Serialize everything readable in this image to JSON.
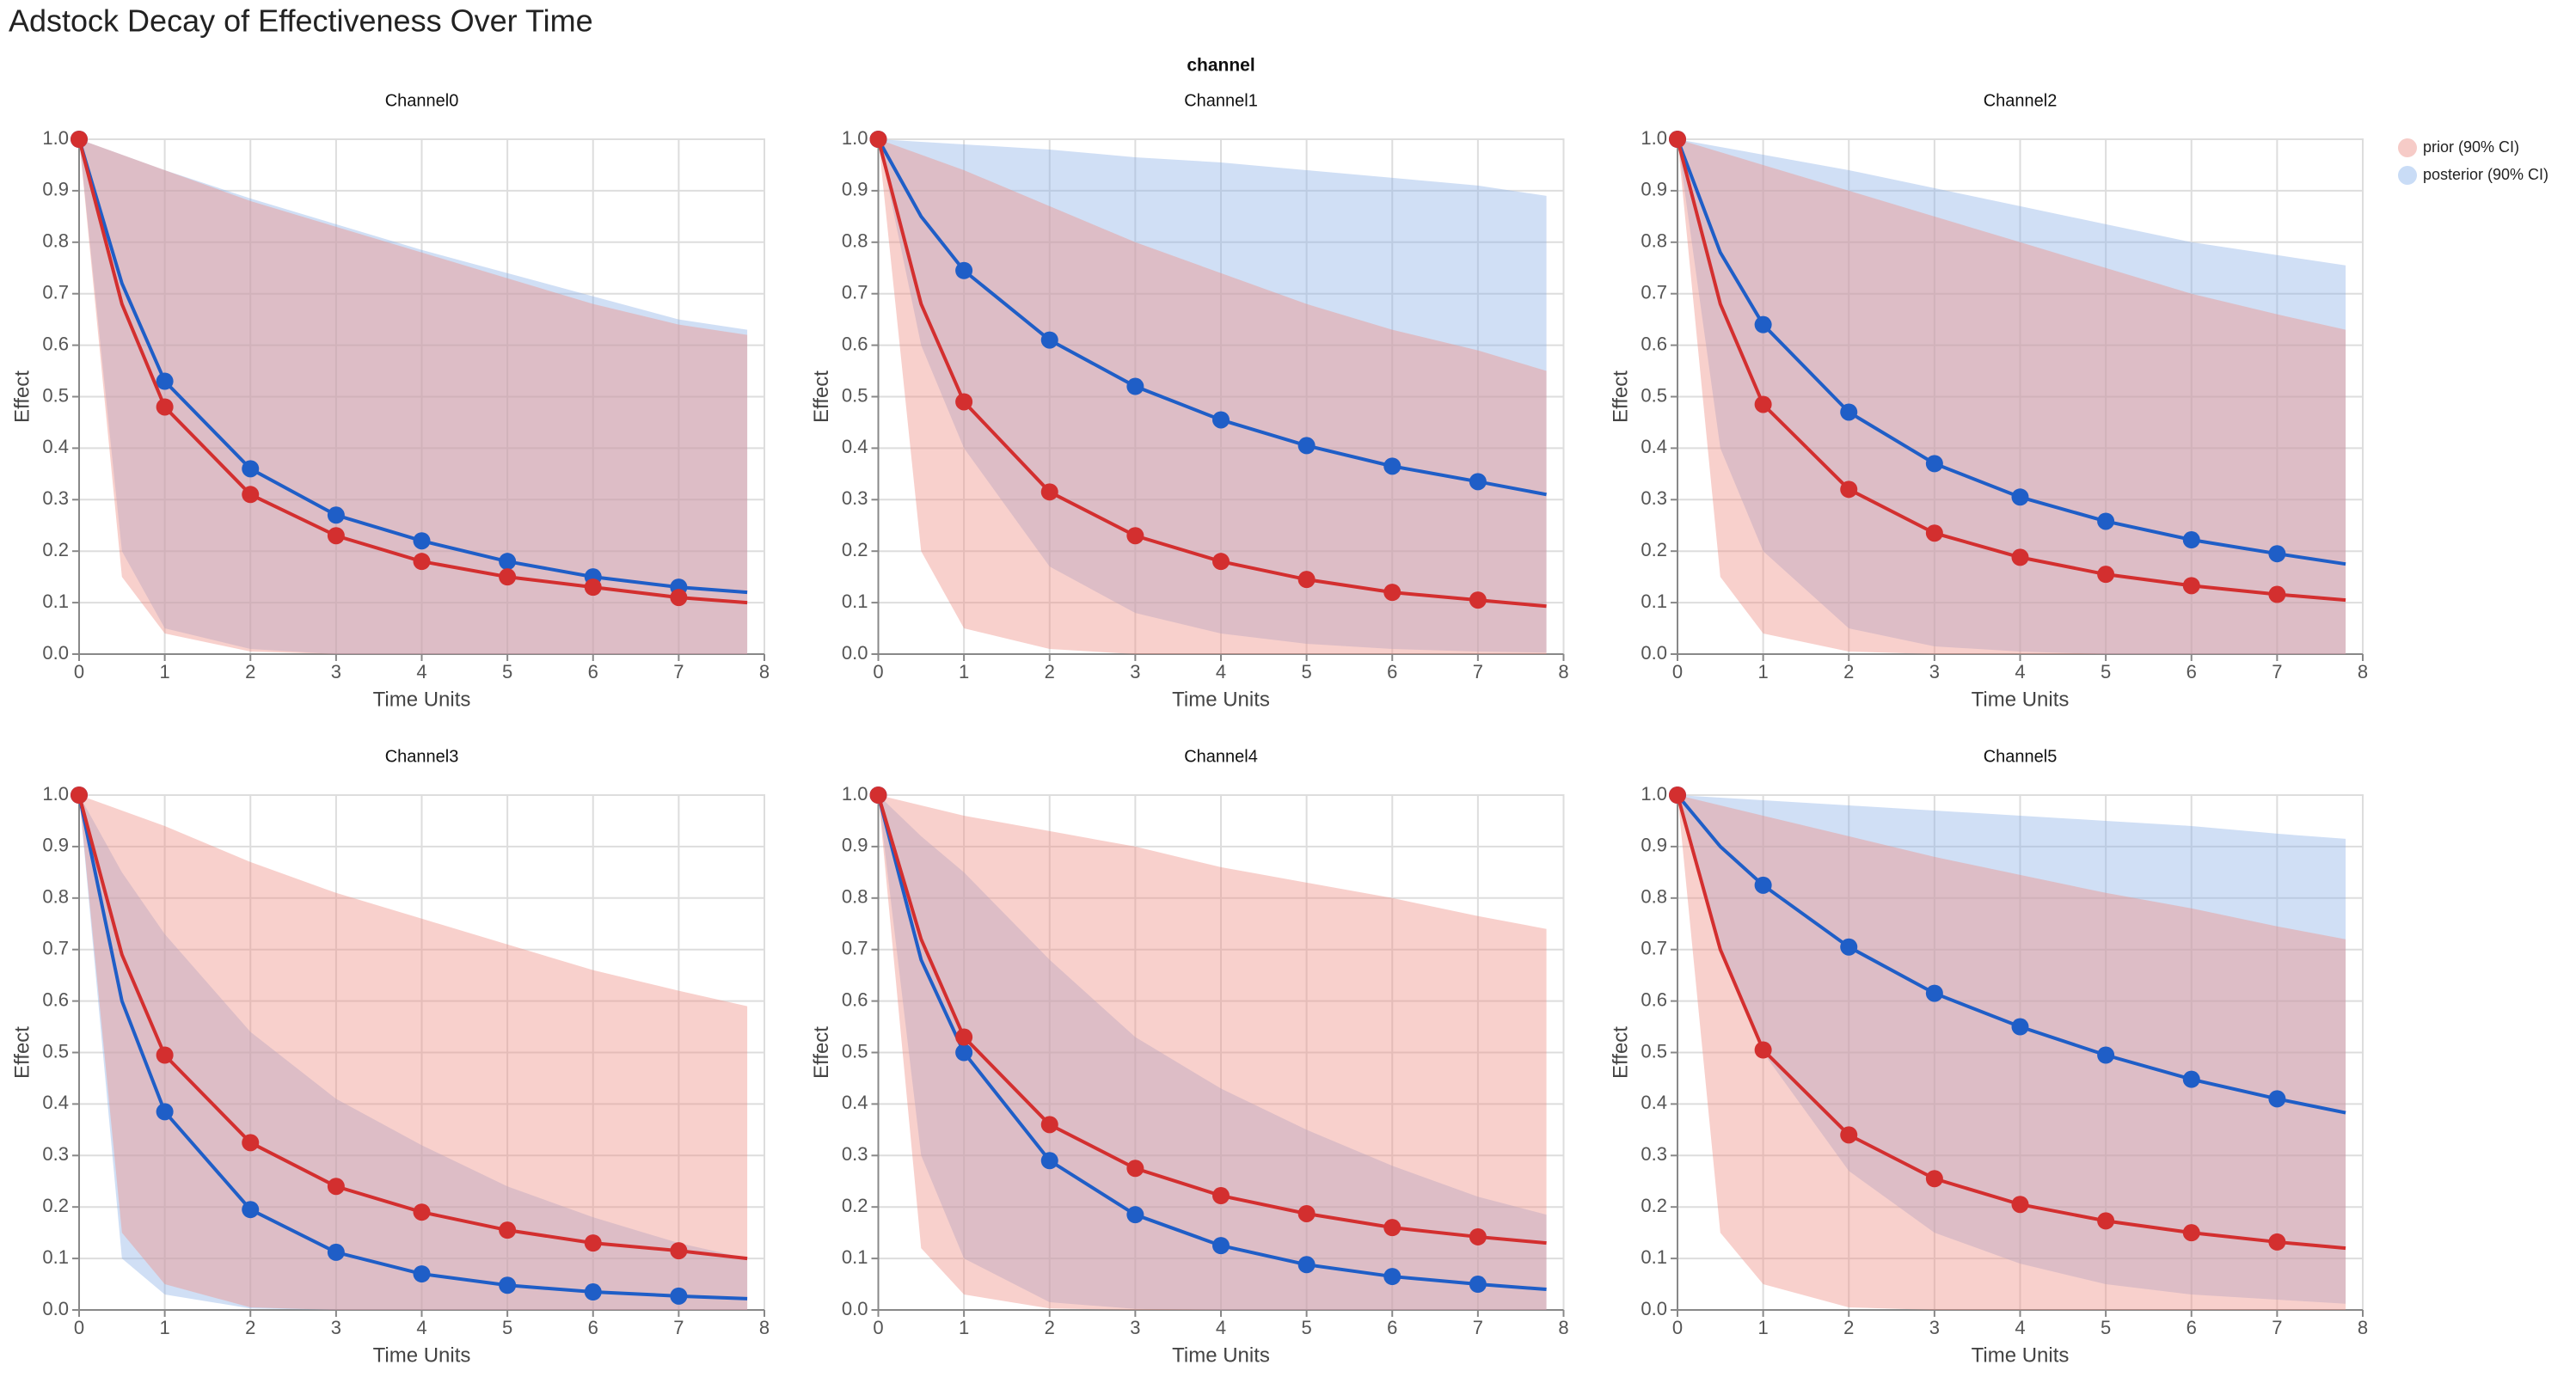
{
  "title": "Adstock Decay of Effectiveness Over Time",
  "facet_label": "channel",
  "legend": {
    "position": "right",
    "items": [
      {
        "name": "prior (90% CI)",
        "color": "#f6cbc7"
      },
      {
        "name": "posterior (90% CI)",
        "color": "#c9dcf6"
      }
    ]
  },
  "chart_data": [
    {
      "type": "line",
      "title": "Channel0",
      "x_label": "Time Units",
      "y_label": "Effect",
      "x": [
        0,
        0.5,
        1,
        2,
        3,
        4,
        5,
        6,
        7,
        7.8
      ],
      "xlim": [
        0,
        8
      ],
      "xticks": [
        0,
        1,
        2,
        3,
        4,
        5,
        6,
        7,
        8
      ],
      "ylim": [
        0,
        1
      ],
      "yticks": [
        {
          "value": 0,
          "label": "0.0"
        },
        0.1,
        0.2,
        0.3,
        0.4,
        0.5,
        0.6,
        0.7,
        0.8,
        0.9,
        {
          "value": 1,
          "label": "1.0"
        }
      ],
      "grid": true,
      "series": [
        {
          "color": "#1f5ec7",
          "band_color": "#8fb3e8",
          "values": [
            1,
            0.72,
            0.53,
            0.36,
            0.27,
            0.22,
            0.18,
            0.15,
            0.13,
            0.12
          ],
          "lower": [
            1,
            0.2,
            0.05,
            0.01,
            0,
            0,
            0,
            0,
            0,
            0
          ],
          "upper": [
            1,
            0.97,
            0.94,
            0.885,
            0.835,
            0.785,
            0.74,
            0.695,
            0.65,
            0.63
          ]
        },
        {
          "color": "#d32f2f",
          "band_color": "#ee8f86",
          "values": [
            1,
            0.68,
            0.48,
            0.31,
            0.23,
            0.18,
            0.15,
            0.13,
            0.11,
            0.1
          ],
          "lower": [
            1,
            0.15,
            0.04,
            0.005,
            0,
            0,
            0,
            0,
            0,
            0
          ],
          "upper": [
            1,
            0.97,
            0.94,
            0.88,
            0.83,
            0.78,
            0.73,
            0.68,
            0.64,
            0.62
          ]
        }
      ]
    },
    {
      "type": "line",
      "title": "Channel1",
      "x_label": "Time Units",
      "y_label": "Effect",
      "x": [
        0,
        0.5,
        1,
        2,
        3,
        4,
        5,
        6,
        7,
        7.8
      ],
      "xlim": [
        0,
        8
      ],
      "xticks": [
        0,
        1,
        2,
        3,
        4,
        5,
        6,
        7,
        8
      ],
      "ylim": [
        0,
        1
      ],
      "yticks": [
        {
          "value": 0,
          "label": "0.0"
        },
        0.1,
        0.2,
        0.3,
        0.4,
        0.5,
        0.6,
        0.7,
        0.8,
        0.9,
        {
          "value": 1,
          "label": "1.0"
        }
      ],
      "grid": true,
      "series": [
        {
          "color": "#1f5ec7",
          "band_color": "#8fb3e8",
          "values": [
            1,
            0.85,
            0.745,
            0.61,
            0.52,
            0.455,
            0.405,
            0.365,
            0.335,
            0.31
          ],
          "lower": [
            1,
            0.6,
            0.4,
            0.17,
            0.08,
            0.04,
            0.02,
            0.01,
            0.005,
            0.003
          ],
          "upper": [
            1,
            0.995,
            0.99,
            0.98,
            0.965,
            0.955,
            0.94,
            0.925,
            0.91,
            0.89
          ]
        },
        {
          "color": "#d32f2f",
          "band_color": "#ee8f86",
          "values": [
            1,
            0.68,
            0.49,
            0.315,
            0.23,
            0.18,
            0.145,
            0.12,
            0.105,
            0.093
          ],
          "lower": [
            1,
            0.2,
            0.05,
            0.01,
            0,
            0,
            0,
            0,
            0,
            0
          ],
          "upper": [
            1,
            0.97,
            0.94,
            0.87,
            0.8,
            0.74,
            0.68,
            0.63,
            0.59,
            0.55
          ]
        }
      ]
    },
    {
      "type": "line",
      "title": "Channel2",
      "x_label": "Time Units",
      "y_label": "Effect",
      "x": [
        0,
        0.5,
        1,
        2,
        3,
        4,
        5,
        6,
        7,
        7.8
      ],
      "xlim": [
        0,
        8
      ],
      "xticks": [
        0,
        1,
        2,
        3,
        4,
        5,
        6,
        7,
        8
      ],
      "ylim": [
        0,
        1
      ],
      "yticks": [
        {
          "value": 0,
          "label": "0.0"
        },
        0.1,
        0.2,
        0.3,
        0.4,
        0.5,
        0.6,
        0.7,
        0.8,
        0.9,
        {
          "value": 1,
          "label": "1.0"
        }
      ],
      "grid": true,
      "series": [
        {
          "color": "#1f5ec7",
          "band_color": "#8fb3e8",
          "values": [
            1,
            0.78,
            0.64,
            0.47,
            0.37,
            0.305,
            0.258,
            0.222,
            0.195,
            0.175
          ],
          "lower": [
            1,
            0.4,
            0.2,
            0.05,
            0.015,
            0.005,
            0,
            0,
            0,
            0
          ],
          "upper": [
            1,
            0.985,
            0.97,
            0.94,
            0.905,
            0.87,
            0.835,
            0.8,
            0.775,
            0.755
          ]
        },
        {
          "color": "#d32f2f",
          "band_color": "#ee8f86",
          "values": [
            1,
            0.68,
            0.485,
            0.32,
            0.235,
            0.188,
            0.155,
            0.133,
            0.116,
            0.105
          ],
          "lower": [
            1,
            0.15,
            0.04,
            0.005,
            0,
            0,
            0,
            0,
            0,
            0
          ],
          "upper": [
            1,
            0.975,
            0.95,
            0.9,
            0.85,
            0.8,
            0.75,
            0.7,
            0.66,
            0.63
          ]
        }
      ]
    },
    {
      "type": "line",
      "title": "Channel3",
      "x_label": "Time Units",
      "y_label": "Effect",
      "x": [
        0,
        0.5,
        1,
        2,
        3,
        4,
        5,
        6,
        7,
        7.8
      ],
      "xlim": [
        0,
        8
      ],
      "xticks": [
        0,
        1,
        2,
        3,
        4,
        5,
        6,
        7,
        8
      ],
      "ylim": [
        0,
        1
      ],
      "yticks": [
        {
          "value": 0,
          "label": "0.0"
        },
        0.1,
        0.2,
        0.3,
        0.4,
        0.5,
        0.6,
        0.7,
        0.8,
        0.9,
        {
          "value": 1,
          "label": "1.0"
        }
      ],
      "grid": true,
      "series": [
        {
          "color": "#1f5ec7",
          "band_color": "#8fb3e8",
          "values": [
            1,
            0.6,
            0.385,
            0.195,
            0.112,
            0.07,
            0.048,
            0.035,
            0.027,
            0.022
          ],
          "lower": [
            1,
            0.1,
            0.03,
            0.003,
            0,
            0,
            0,
            0,
            0,
            0
          ],
          "upper": [
            1,
            0.85,
            0.73,
            0.54,
            0.41,
            0.32,
            0.24,
            0.18,
            0.13,
            0.1
          ]
        },
        {
          "color": "#d32f2f",
          "band_color": "#ee8f86",
          "values": [
            1,
            0.69,
            0.495,
            0.325,
            0.24,
            0.19,
            0.155,
            0.13,
            0.115,
            0.1
          ],
          "lower": [
            1,
            0.15,
            0.05,
            0.005,
            0,
            0,
            0,
            0,
            0,
            0
          ],
          "upper": [
            1,
            0.97,
            0.94,
            0.87,
            0.81,
            0.76,
            0.71,
            0.66,
            0.62,
            0.59
          ]
        }
      ]
    },
    {
      "type": "line",
      "title": "Channel4",
      "x_label": "Time Units",
      "y_label": "Effect",
      "x": [
        0,
        0.5,
        1,
        2,
        3,
        4,
        5,
        6,
        7,
        7.8
      ],
      "xlim": [
        0,
        8
      ],
      "xticks": [
        0,
        1,
        2,
        3,
        4,
        5,
        6,
        7,
        8
      ],
      "ylim": [
        0,
        1
      ],
      "yticks": [
        {
          "value": 0,
          "label": "0.0"
        },
        0.1,
        0.2,
        0.3,
        0.4,
        0.5,
        0.6,
        0.7,
        0.8,
        0.9,
        {
          "value": 1,
          "label": "1.0"
        }
      ],
      "grid": true,
      "series": [
        {
          "color": "#1f5ec7",
          "band_color": "#8fb3e8",
          "values": [
            1,
            0.68,
            0.5,
            0.29,
            0.185,
            0.125,
            0.088,
            0.065,
            0.05,
            0.04
          ],
          "lower": [
            1,
            0.3,
            0.1,
            0.015,
            0.002,
            0,
            0,
            0,
            0,
            0
          ],
          "upper": [
            1,
            0.92,
            0.85,
            0.68,
            0.53,
            0.43,
            0.35,
            0.28,
            0.22,
            0.185
          ]
        },
        {
          "color": "#d32f2f",
          "band_color": "#ee8f86",
          "values": [
            1,
            0.72,
            0.53,
            0.36,
            0.275,
            0.222,
            0.187,
            0.16,
            0.142,
            0.13
          ],
          "lower": [
            1,
            0.12,
            0.03,
            0.003,
            0,
            0,
            0,
            0,
            0,
            0
          ],
          "upper": [
            1,
            0.98,
            0.96,
            0.93,
            0.9,
            0.86,
            0.83,
            0.8,
            0.765,
            0.74
          ]
        }
      ]
    },
    {
      "type": "line",
      "title": "Channel5",
      "x_label": "Time Units",
      "y_label": "Effect",
      "x": [
        0,
        0.5,
        1,
        2,
        3,
        4,
        5,
        6,
        7,
        7.8
      ],
      "xlim": [
        0,
        8
      ],
      "xticks": [
        0,
        1,
        2,
        3,
        4,
        5,
        6,
        7,
        8
      ],
      "ylim": [
        0,
        1
      ],
      "yticks": [
        {
          "value": 0,
          "label": "0.0"
        },
        0.1,
        0.2,
        0.3,
        0.4,
        0.5,
        0.6,
        0.7,
        0.8,
        0.9,
        {
          "value": 1,
          "label": "1.0"
        }
      ],
      "grid": true,
      "series": [
        {
          "color": "#1f5ec7",
          "band_color": "#8fb3e8",
          "values": [
            1,
            0.9,
            0.825,
            0.705,
            0.615,
            0.55,
            0.495,
            0.448,
            0.41,
            0.383
          ],
          "lower": [
            1,
            0.7,
            0.5,
            0.27,
            0.15,
            0.09,
            0.05,
            0.03,
            0.02,
            0.012
          ],
          "upper": [
            1,
            0.995,
            0.99,
            0.98,
            0.97,
            0.96,
            0.95,
            0.94,
            0.925,
            0.915
          ]
        },
        {
          "color": "#d32f2f",
          "band_color": "#ee8f86",
          "values": [
            1,
            0.7,
            0.505,
            0.34,
            0.255,
            0.205,
            0.173,
            0.15,
            0.132,
            0.12
          ],
          "lower": [
            1,
            0.15,
            0.05,
            0.005,
            0,
            0,
            0,
            0,
            0,
            0
          ],
          "upper": [
            1,
            0.98,
            0.96,
            0.92,
            0.88,
            0.845,
            0.81,
            0.78,
            0.745,
            0.72
          ]
        }
      ]
    }
  ]
}
